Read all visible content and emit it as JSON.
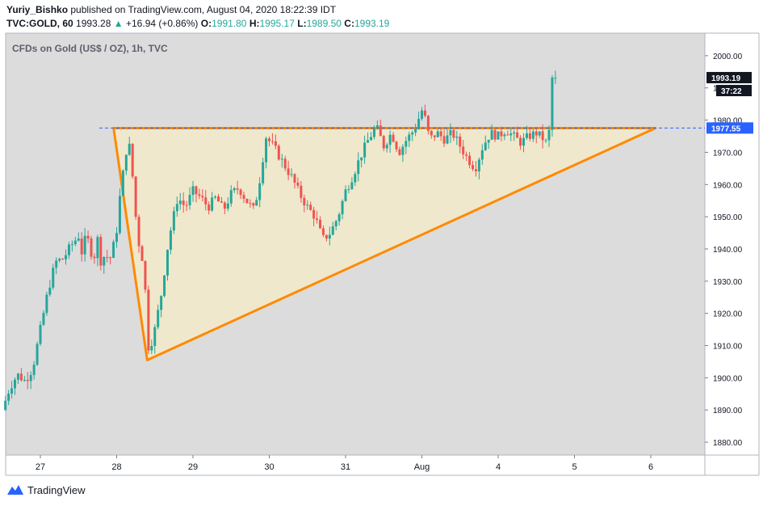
{
  "header": {
    "author": "Yuriy_Bishko",
    "published_text": "published on TradingView.com, August 04, 2020 18:22:39 IDT",
    "symbol": "TVC:GOLD, 60",
    "last": "1993.28",
    "change_arrow": "▲",
    "change": "+16.94 (+0.86%)",
    "o_label": "O:",
    "o_value": "1991.80",
    "h_label": "H:",
    "h_value": "1995.17",
    "l_label": "L:",
    "l_value": "1989.50",
    "c_label": "C:",
    "c_value": "1993.19"
  },
  "chart_data": {
    "type": "candlestick",
    "title": "CFDs on Gold (US$ / OZ), 1h, TVC",
    "x_ticks": [
      "27",
      "28",
      "29",
      "30",
      "31",
      "Aug",
      "4",
      "5",
      "6"
    ],
    "y_ticks": [
      1880,
      1890,
      1900,
      1910,
      1920,
      1930,
      1940,
      1950,
      1960,
      1970,
      1980,
      1990,
      2000
    ],
    "ylim": [
      1876,
      2007
    ],
    "grid": false,
    "price_label": "1993.19",
    "countdown_label": "37:22",
    "level_label": "1977.55",
    "level_value": 1977.55,
    "close_path": [
      [
        26.5,
        1890
      ],
      [
        26.6,
        1897
      ],
      [
        26.7,
        1901
      ],
      [
        26.8,
        1899
      ],
      [
        26.9,
        1903
      ],
      [
        27.0,
        1915
      ],
      [
        27.1,
        1927
      ],
      [
        27.2,
        1936
      ],
      [
        27.3,
        1937
      ],
      [
        27.4,
        1941
      ],
      [
        27.5,
        1944
      ],
      [
        27.55,
        1938
      ],
      [
        27.6,
        1945
      ],
      [
        27.65,
        1940
      ],
      [
        27.7,
        1937
      ],
      [
        27.75,
        1943
      ],
      [
        27.8,
        1935
      ],
      [
        27.85,
        1939
      ],
      [
        27.9,
        1936
      ],
      [
        27.95,
        1940
      ],
      [
        28.0,
        1946
      ],
      [
        28.05,
        1958
      ],
      [
        28.1,
        1966
      ],
      [
        28.15,
        1975
      ],
      [
        28.2,
        1965
      ],
      [
        28.25,
        1950
      ],
      [
        28.3,
        1940
      ],
      [
        28.35,
        1936
      ],
      [
        28.4,
        1918
      ],
      [
        28.42,
        1908
      ],
      [
        28.5,
        1915
      ],
      [
        28.6,
        1928
      ],
      [
        28.65,
        1938
      ],
      [
        28.7,
        1945
      ],
      [
        28.8,
        1956
      ],
      [
        28.9,
        1953
      ],
      [
        29.0,
        1958
      ],
      [
        29.1,
        1956
      ],
      [
        29.2,
        1953
      ],
      [
        29.3,
        1956
      ],
      [
        29.4,
        1952
      ],
      [
        29.5,
        1957
      ],
      [
        29.6,
        1959
      ],
      [
        29.7,
        1955
      ],
      [
        29.8,
        1952
      ],
      [
        29.85,
        1958
      ],
      [
        29.9,
        1965
      ],
      [
        29.95,
        1975
      ],
      [
        30.05,
        1972
      ],
      [
        30.15,
        1968
      ],
      [
        30.2,
        1966
      ],
      [
        30.3,
        1962
      ],
      [
        30.4,
        1957
      ],
      [
        30.5,
        1953
      ],
      [
        30.6,
        1950
      ],
      [
        30.7,
        1943
      ],
      [
        30.8,
        1945
      ],
      [
        30.9,
        1950
      ],
      [
        31.0,
        1958
      ],
      [
        31.1,
        1963
      ],
      [
        31.2,
        1969
      ],
      [
        31.3,
        1974
      ],
      [
        31.4,
        1978
      ],
      [
        31.5,
        1972
      ],
      [
        31.6,
        1976
      ],
      [
        31.7,
        1970
      ],
      [
        31.8,
        1974
      ],
      [
        31.9,
        1977
      ],
      [
        32.0,
        1983
      ],
      [
        32.05,
        1980
      ],
      [
        32.1,
        1974
      ],
      [
        32.2,
        1976
      ],
      [
        32.3,
        1974
      ],
      [
        32.4,
        1976
      ],
      [
        32.5,
        1972
      ],
      [
        32.6,
        1968
      ],
      [
        32.7,
        1965
      ],
      [
        32.8,
        1972
      ],
      [
        32.9,
        1976
      ],
      [
        33.0,
        1975
      ],
      [
        33.1,
        1977
      ],
      [
        33.2,
        1975
      ],
      [
        33.3,
        1973
      ],
      [
        33.4,
        1975
      ],
      [
        33.5,
        1976
      ],
      [
        33.6,
        1974
      ],
      [
        33.65,
        1972
      ],
      [
        33.7,
        1985
      ],
      [
        33.75,
        1993
      ]
    ],
    "triangle_points": [
      [
        27.96,
        1977.5
      ],
      [
        28.4,
        1905.5
      ],
      [
        35.06,
        1977.5
      ]
    ]
  },
  "footer": {
    "brand": "TradingView"
  },
  "colors": {
    "background": "#ffffff",
    "plot_bg": "#dcdcdc",
    "up": "#26a69a",
    "down": "#ef5350",
    "triangle_fill": "#fff2c0",
    "triangle_stroke": "#ff8a00",
    "level_line": "#2962ff",
    "text": "#131722"
  }
}
